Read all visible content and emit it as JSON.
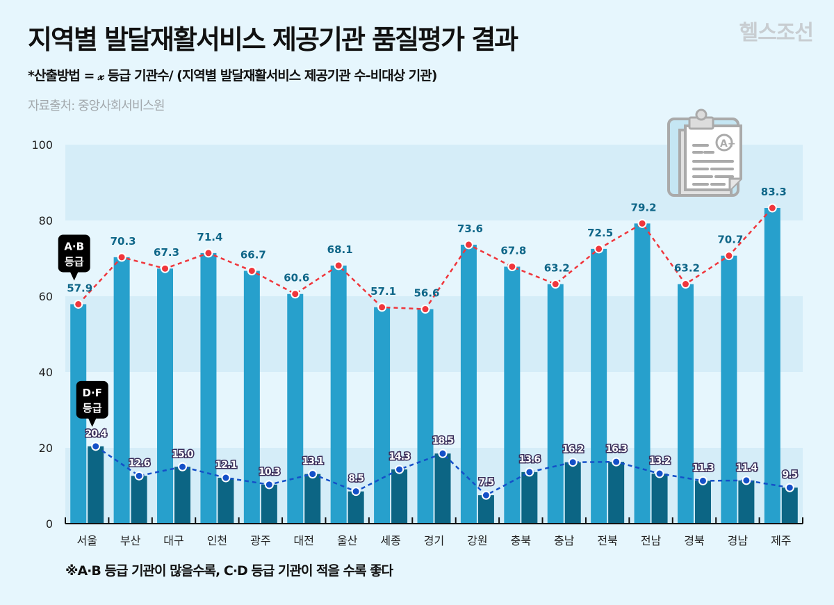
{
  "header": {
    "title": "지역별 발달재활서비스 제공기관 품질평가 결과",
    "brand": "헬스조선",
    "subtitle": "*산출방법 = 𝓍 등급 기관수/ (지역별 발달재활서비스 제공기관 수-비대상 기관)",
    "source": "자료출처: 중앙사회서비스원"
  },
  "footnote": "※A·B 등급 기관이 많을수록, C·D 등급 기관이 적을 수록 좋다",
  "icon": "clipboard-grade-a-plus-icon",
  "colors": {
    "background": "#e6f6fd",
    "band": "#d5edf8",
    "ab_bar": "#27a0cc",
    "df_bar": "#0c6584",
    "ab_line": "#f0363c",
    "df_line": "#1450c8",
    "ab_label": "#0f6688"
  },
  "chart_data": {
    "type": "bar",
    "title": "지역별 발달재활서비스 제공기관 품질평가 결과",
    "xlabel": "",
    "ylabel": "",
    "ylim": [
      0,
      100
    ],
    "yticks": [
      0,
      20,
      40,
      60,
      80,
      100
    ],
    "grid": "alternating horizontal bands",
    "categories": [
      "서울",
      "부산",
      "대구",
      "인천",
      "광주",
      "대전",
      "울산",
      "세종",
      "경기",
      "강원",
      "충북",
      "충남",
      "전북",
      "전남",
      "경북",
      "경남",
      "제주"
    ],
    "series": [
      {
        "name": "A·B 등급",
        "callout": [
          "A·B",
          "등급"
        ],
        "type": "bar+line",
        "values": [
          57.9,
          70.3,
          67.3,
          71.4,
          66.7,
          60.6,
          68.1,
          57.1,
          56.6,
          73.6,
          67.8,
          63.2,
          72.5,
          79.2,
          63.2,
          70.7,
          83.3
        ]
      },
      {
        "name": "D·F 등급",
        "callout": [
          "D·F",
          "등급"
        ],
        "type": "bar+line",
        "values": [
          20.4,
          12.6,
          15.0,
          12.1,
          10.3,
          13.1,
          8.5,
          14.3,
          18.5,
          7.5,
          13.6,
          16.2,
          16.3,
          13.2,
          11.3,
          11.4,
          9.5
        ]
      }
    ]
  }
}
